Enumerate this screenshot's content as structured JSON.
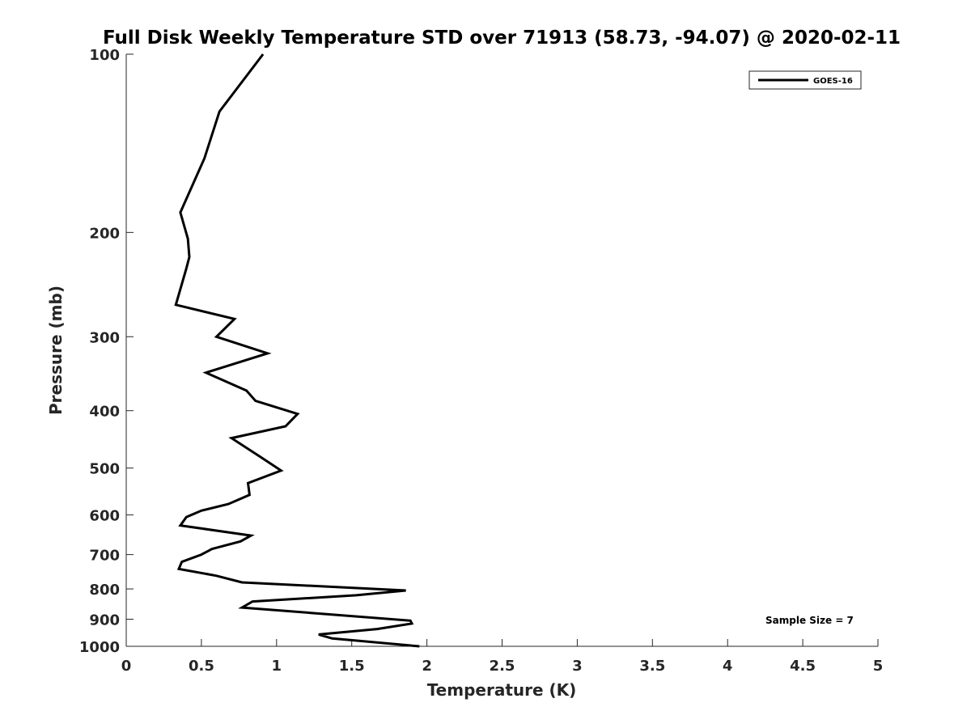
{
  "chart_data": {
    "type": "line",
    "title": "Full Disk Weekly Temperature STD over 71913 (58.73, -94.07) @ 2020-02-11",
    "xlabel": "Temperature (K)",
    "ylabel": "Pressure (mb)",
    "xlim": [
      0,
      5
    ],
    "ylim": [
      100,
      1000
    ],
    "y_scale": "log",
    "y_reversed": true,
    "xticks": [
      0,
      0.5,
      1,
      1.5,
      2,
      2.5,
      3,
      3.5,
      4,
      4.5,
      5
    ],
    "xtick_labels": [
      "0",
      "0.5",
      "1",
      "1.5",
      "2",
      "2.5",
      "3",
      "3.5",
      "4",
      "4.5",
      "5"
    ],
    "yticks": [
      100,
      200,
      300,
      400,
      500,
      600,
      700,
      800,
      900,
      1000
    ],
    "ytick_labels": [
      "100",
      "200",
      "300",
      "400",
      "500",
      "600",
      "700",
      "800",
      "900",
      "1000"
    ],
    "grid": false,
    "legend_position": "top-right",
    "series": [
      {
        "name": "GOES-16",
        "color": "#000000",
        "x": [
          0.91,
          0.62,
          0.52,
          0.36,
          0.41,
          0.42,
          0.4,
          0.33,
          0.72,
          0.6,
          0.94,
          0.53,
          0.8,
          0.86,
          1.14,
          1.06,
          0.7,
          0.9,
          1.03,
          0.81,
          0.82,
          0.68,
          0.5,
          0.4,
          0.36,
          0.83,
          0.76,
          0.57,
          0.5,
          0.37,
          0.35,
          0.6,
          0.77,
          1.86,
          1.53,
          0.84,
          0.77,
          1.89,
          1.9,
          1.67,
          1.28,
          1.37,
          1.95
        ],
        "y": [
          100,
          125,
          150,
          185,
          205,
          220,
          230,
          265,
          280,
          300,
          320,
          345,
          370,
          385,
          405,
          425,
          445,
          480,
          505,
          530,
          555,
          575,
          590,
          605,
          625,
          650,
          665,
          685,
          700,
          720,
          740,
          760,
          780,
          805,
          820,
          840,
          860,
          905,
          915,
          935,
          955,
          970,
          1000
        ]
      }
    ],
    "legend": {
      "entries": [
        "GOES-16"
      ]
    },
    "annotation": "Sample Size = 7"
  }
}
